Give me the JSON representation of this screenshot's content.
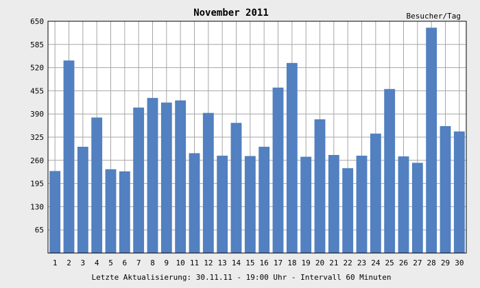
{
  "chart_data": {
    "type": "bar",
    "title": "November 2011",
    "ylabel": "Besucher/Tag",
    "footer": "Letzte Aktualisierung: 30.11.11 - 19:00 Uhr - Intervall 60 Minuten",
    "ylim": [
      0,
      650
    ],
    "yticks": [
      65,
      130,
      195,
      260,
      325,
      390,
      455,
      520,
      585,
      650
    ],
    "categories": [
      "1",
      "2",
      "3",
      "4",
      "5",
      "6",
      "7",
      "8",
      "9",
      "10",
      "11",
      "12",
      "13",
      "14",
      "15",
      "16",
      "17",
      "18",
      "19",
      "20",
      "21",
      "22",
      "23",
      "24",
      "25",
      "26",
      "27",
      "28",
      "29",
      "30"
    ],
    "values": [
      230,
      540,
      298,
      380,
      235,
      229,
      408,
      435,
      422,
      428,
      280,
      393,
      273,
      365,
      272,
      298,
      464,
      533,
      270,
      375,
      275,
      238,
      273,
      335,
      460,
      271,
      253,
      632,
      356,
      341
    ],
    "grid": true,
    "legend": "none",
    "colors": {
      "background": "#ececec",
      "plot_background": "#ffffff",
      "grid": "#a6a6a6",
      "bar": "#5280c0",
      "axis": "#000000"
    }
  }
}
